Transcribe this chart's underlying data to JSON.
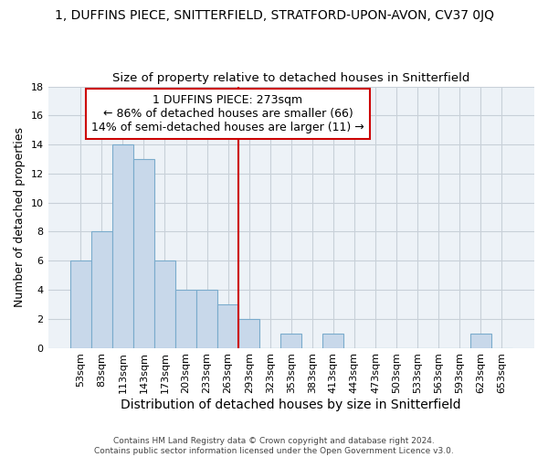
{
  "title": "1, DUFFINS PIECE, SNITTERFIELD, STRATFORD-UPON-AVON, CV37 0JQ",
  "subtitle": "Size of property relative to detached houses in Snitterfield",
  "xlabel": "Distribution of detached houses by size in Snitterfield",
  "ylabel": "Number of detached properties",
  "bin_labels": [
    "53sqm",
    "83sqm",
    "113sqm",
    "143sqm",
    "173sqm",
    "203sqm",
    "233sqm",
    "263sqm",
    "293sqm",
    "323sqm",
    "353sqm",
    "383sqm",
    "413sqm",
    "443sqm",
    "473sqm",
    "503sqm",
    "533sqm",
    "563sqm",
    "593sqm",
    "623sqm",
    "653sqm"
  ],
  "bar_heights": [
    6,
    8,
    14,
    13,
    6,
    4,
    4,
    3,
    2,
    0,
    1,
    0,
    1,
    0,
    0,
    0,
    0,
    0,
    0,
    1,
    0
  ],
  "bar_color": "#c8d8ea",
  "bar_edge_color": "#7aabcc",
  "annotation_text": "1 DUFFINS PIECE: 273sqm\n← 86% of detached houses are smaller (66)\n14% of semi-detached houses are larger (11) →",
  "annotation_box_color": "#ffffff",
  "annotation_box_edge_color": "#cc0000",
  "vline_x_bin": 7.5,
  "vline_color": "#cc0000",
  "ylim": [
    0,
    18
  ],
  "yticks": [
    0,
    2,
    4,
    6,
    8,
    10,
    12,
    14,
    16,
    18
  ],
  "grid_color": "#c8d0d8",
  "background_color": "#edf2f7",
  "footer_text": "Contains HM Land Registry data © Crown copyright and database right 2024.\nContains public sector information licensed under the Open Government Licence v3.0.",
  "title_fontsize": 10,
  "subtitle_fontsize": 9.5,
  "xlabel_fontsize": 10,
  "ylabel_fontsize": 9,
  "tick_fontsize": 8,
  "annotation_fontsize": 9,
  "footer_fontsize": 6.5
}
